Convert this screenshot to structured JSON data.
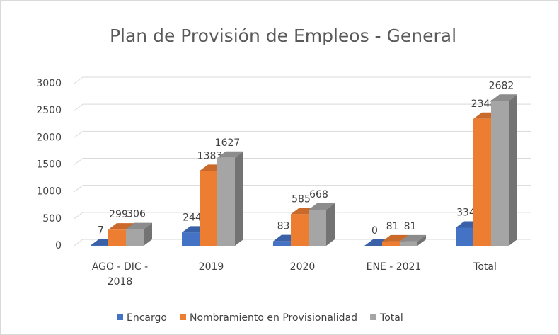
{
  "chart_data": {
    "type": "bar3d",
    "title": "Plan de Provisión de Empleos - General",
    "categories": [
      "AGO - DIC - 2018",
      "2019",
      "2020",
      "ENE - 2021",
      "Total"
    ],
    "series": [
      {
        "name": "Encargo",
        "color": "#4472c4",
        "values": [
          7,
          244,
          83,
          0,
          334
        ]
      },
      {
        "name": "Nombramiento en Provisionalidad",
        "color": "#ed7d31",
        "values": [
          299,
          1383,
          585,
          81,
          2348
        ]
      },
      {
        "name": "Total",
        "color": "#a5a5a5",
        "values": [
          306,
          1627,
          668,
          81,
          2682
        ]
      }
    ],
    "ylim": [
      0,
      3000
    ],
    "yticks": [
      0,
      500,
      1000,
      1500,
      2000,
      2500,
      3000
    ],
    "grid": true,
    "legend": "bottom"
  }
}
